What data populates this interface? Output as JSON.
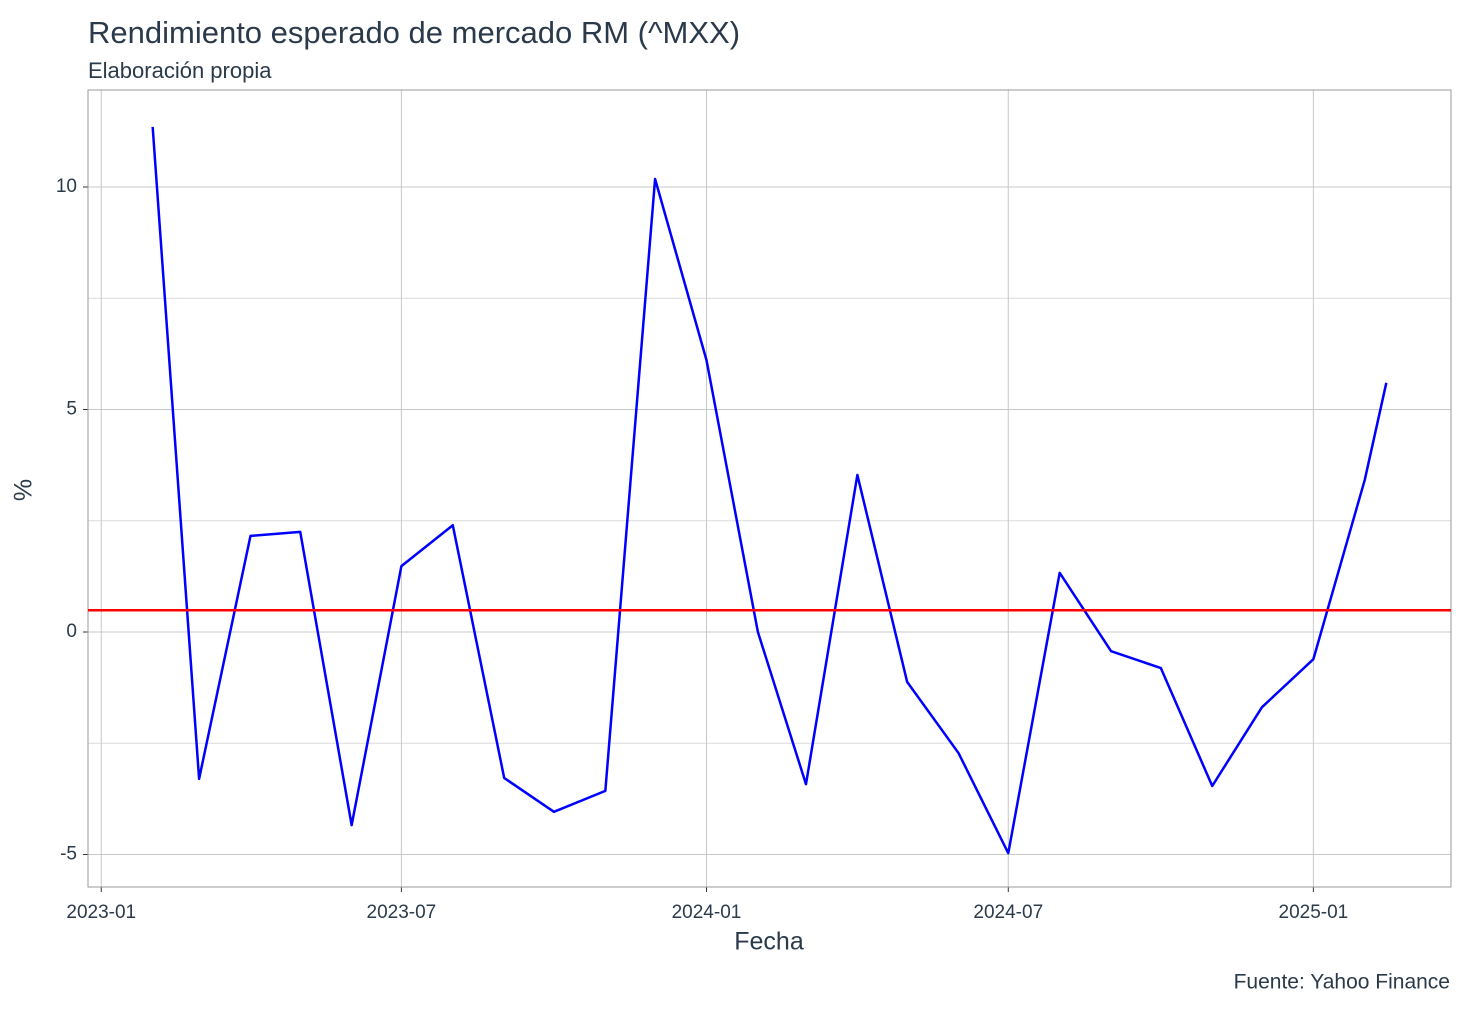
{
  "chart_data": {
    "type": "line",
    "title": "Rendimiento esperado de mercado RM (^MXX)",
    "subtitle": "Elaboración propia",
    "x_label": "Fecha",
    "y_label": "%",
    "caption": "Fuente: Yahoo Finance",
    "x": [
      "2023-02",
      "2023-03",
      "2023-04",
      "2023-05",
      "2023-06",
      "2023-07",
      "2023-08",
      "2023-09",
      "2023-10",
      "2023-11",
      "2023-12",
      "2024-01",
      "2024-02",
      "2024-03",
      "2024-04",
      "2024-05",
      "2024-06",
      "2024-07",
      "2024-08",
      "2024-09",
      "2024-10",
      "2024-11",
      "2024-12",
      "2025-01",
      "2025-02",
      "2025-02-14"
    ],
    "series": [
      {
        "name": "Rendimiento",
        "color": "#0000ff",
        "values": [
          11.35,
          -3.3,
          2.16,
          2.25,
          -4.34,
          1.48,
          2.4,
          -3.28,
          -4.04,
          -3.57,
          10.18,
          6.11,
          0.0,
          -3.42,
          3.53,
          -1.12,
          -2.72,
          -4.97,
          1.33,
          -0.43,
          -0.81,
          -3.46,
          -1.69,
          -0.61,
          3.42,
          5.6
        ]
      }
    ],
    "hline": {
      "value": 0.49,
      "color": "#ff0000"
    },
    "xlim": [
      "2022-12-24",
      "2025-03-25"
    ],
    "xticks": [
      "2023-01",
      "2023-07",
      "2024-01",
      "2024-07",
      "2025-01"
    ],
    "ylim": [
      -5.73,
      12.18
    ],
    "yticks": [
      -5,
      0,
      5,
      10
    ],
    "minor_yticks": [
      -2.5,
      2.5,
      7.5
    ],
    "grid": true
  }
}
